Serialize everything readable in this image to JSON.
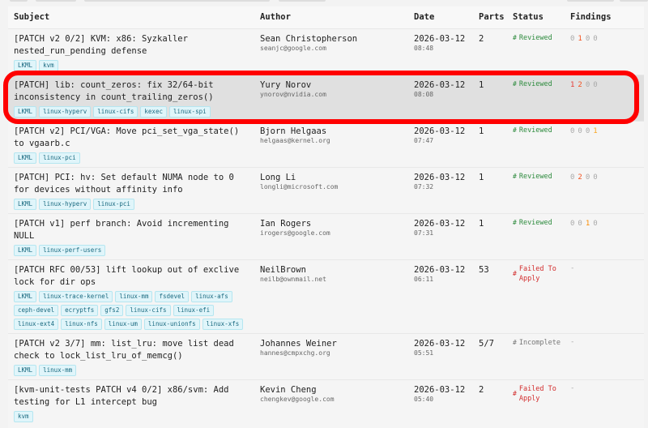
{
  "headers": {
    "subject": "Subject",
    "author": "Author",
    "date": "Date",
    "parts": "Parts",
    "status": "Status",
    "findings": "Findings"
  },
  "colors": {
    "reviewed": "#2e8b3e",
    "failed": "#d32f2f",
    "incomplete": "#777777",
    "tag_bg": "#e0f5fa",
    "highlight": "#ff0000",
    "finding_zero": "#aaaaaa",
    "finding_colors": [
      "#e53935",
      "#f4511e",
      "#fb8c00",
      "#f9a825"
    ]
  },
  "rows": [
    {
      "subject": "[PATCH v2 0/2] KVM: x86: Syzkaller nested_run_pending defense",
      "tags": [
        "LKML",
        "kvm"
      ],
      "author": "Sean Christopherson",
      "email": "seanjc@google.com",
      "date": "2026-03-12",
      "time": "08:48",
      "parts": "2",
      "status": "Reviewed",
      "status_type": "reviewed",
      "findings": [
        0,
        1,
        0,
        0
      ]
    },
    {
      "subject": "[PATCH] lib: count_zeros: fix 32/64-bit inconsistency in count_trailing_zeros()",
      "tags": [
        "LKML",
        "linux-hyperv",
        "linux-cifs",
        "kexec",
        "linux-spi"
      ],
      "author": "Yury Norov",
      "email": "ynorov@nvidia.com",
      "date": "2026-03-12",
      "time": "08:08",
      "parts": "1",
      "status": "Reviewed",
      "status_type": "reviewed",
      "findings": [
        1,
        2,
        0,
        0
      ],
      "highlighted": true
    },
    {
      "subject": "[PATCH v2] PCI/VGA: Move pci_set_vga_state() to vgaarb.c",
      "tags": [
        "LKML",
        "linux-pci"
      ],
      "author": "Bjorn Helgaas",
      "email": "helgaas@kernel.org",
      "date": "2026-03-12",
      "time": "07:47",
      "parts": "1",
      "status": "Reviewed",
      "status_type": "reviewed",
      "findings": [
        0,
        0,
        0,
        1
      ]
    },
    {
      "subject": "[PATCH] PCI: hv: Set default NUMA node to 0 for devices without affinity info",
      "tags": [
        "LKML",
        "linux-hyperv",
        "linux-pci"
      ],
      "author": "Long Li",
      "email": "longli@microsoft.com",
      "date": "2026-03-12",
      "time": "07:32",
      "parts": "1",
      "status": "Reviewed",
      "status_type": "reviewed",
      "findings": [
        0,
        2,
        0,
        0
      ]
    },
    {
      "subject": "[PATCH v1] perf branch: Avoid incrementing NULL",
      "tags": [
        "LKML",
        "linux-perf-users"
      ],
      "author": "Ian Rogers",
      "email": "irogers@google.com",
      "date": "2026-03-12",
      "time": "07:31",
      "parts": "1",
      "status": "Reviewed",
      "status_type": "reviewed",
      "findings": [
        0,
        0,
        1,
        0
      ]
    },
    {
      "subject": "[PATCH RFC 00/53] lift lookup out of exclive lock for dir ops",
      "tags": [
        "LKML",
        "linux-trace-kernel",
        "linux-mm",
        "fsdevel",
        "linux-afs",
        "ceph-devel",
        "ecryptfs",
        "gfs2",
        "linux-cifs",
        "linux-efi",
        "linux-ext4",
        "linux-nfs",
        "linux-um",
        "linux-unionfs",
        "linux-xfs"
      ],
      "author": "NeilBrown",
      "email": "neilb@ownmail.net",
      "date": "2026-03-12",
      "time": "06:11",
      "parts": "53",
      "status": "Failed To Apply",
      "status_type": "failed",
      "findings": null,
      "findings_text": "-"
    },
    {
      "subject": "[PATCH v2 3/7] mm: list_lru: move list dead check to lock_list_lru_of_memcg()",
      "tags": [
        "LKML",
        "linux-mm"
      ],
      "author": "Johannes Weiner",
      "email": "hannes@cmpxchg.org",
      "date": "2026-03-12",
      "time": "05:51",
      "parts": "5/7",
      "status": "Incomplete",
      "status_type": "incomplete",
      "findings": null,
      "findings_text": "-"
    },
    {
      "subject": "[kvm-unit-tests PATCH v4 0/2] x86/svm: Add testing for L1 intercept bug",
      "tags": [
        "kvm"
      ],
      "author": "Kevin Cheng",
      "email": "chengkev@google.com",
      "date": "2026-03-12",
      "time": "05:40",
      "parts": "2",
      "status": "Failed To Apply",
      "status_type": "failed",
      "findings": null,
      "findings_text": "-"
    }
  ]
}
